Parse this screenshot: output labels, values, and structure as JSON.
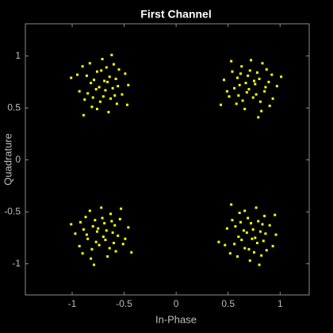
{
  "chart_data": {
    "type": "scatter",
    "title": "First Channel",
    "x_label": "In-Phase",
    "y_label": "Quadrature",
    "color": "#ffff00",
    "background": "#000000",
    "xlim": [
      -1.45,
      1.28
    ],
    "ylim": [
      -1.3,
      1.31
    ],
    "xticks": [
      -1,
      -0.5,
      0,
      0.5,
      1
    ],
    "yticks": [
      -1,
      -0.5,
      0,
      0.5,
      1
    ],
    "x": [
      0.76,
      0.59,
      0.81,
      0.68,
      0.89,
      0.51,
      0.78,
      0.63,
      0.85,
      0.56,
      0.72,
      0.93,
      0.66,
      0.8,
      0.61,
      0.74,
      0.46,
      0.87,
      0.69,
      0.82,
      0.54,
      0.97,
      0.64,
      0.75,
      0.58,
      0.9,
      0.7,
      0.83,
      0.49,
      0.77,
      0.62,
      1.01,
      0.43,
      0.71,
      0.86,
      0.67,
      0.79,
      0.53,
      0.92,
      0.6,
      -0.69,
      -0.63,
      -0.86,
      -0.77,
      -0.67,
      -0.81,
      -0.58,
      -0.52,
      -0.76,
      -0.73,
      -0.46,
      -0.83,
      -0.93,
      -0.64,
      -0.7,
      -0.82,
      -0.65,
      -0.55,
      -0.61,
      -0.95,
      -0.57,
      -0.71,
      -0.85,
      -0.66,
      -0.88,
      -0.9,
      -0.74,
      -0.49,
      -0.76,
      -0.79,
      -0.59,
      -0.62,
      -0.89,
      -0.56,
      -0.72,
      -0.68,
      -1.01,
      -0.47,
      -0.6,
      -0.8,
      -0.76,
      -0.59,
      -0.81,
      -0.68,
      -0.89,
      -0.51,
      -0.78,
      -0.63,
      -0.85,
      -0.56,
      -0.72,
      -0.93,
      -0.66,
      -0.8,
      -0.61,
      -0.74,
      -0.46,
      -0.87,
      -0.69,
      -0.82,
      -0.54,
      -0.97,
      -0.64,
      -0.75,
      -0.58,
      -0.9,
      -0.7,
      -0.83,
      -0.49,
      -0.77,
      -0.62,
      -1.01,
      -0.43,
      -0.71,
      -0.86,
      -0.67,
      -0.79,
      -0.53,
      -0.92,
      -0.6,
      0.73,
      0.79,
      0.56,
      0.65,
      0.75,
      0.61,
      0.84,
      0.9,
      0.66,
      0.69,
      0.96,
      0.59,
      0.49,
      0.78,
      0.72,
      0.6,
      0.77,
      0.87,
      0.81,
      0.47,
      0.85,
      0.71,
      0.57,
      0.76,
      0.54,
      0.52,
      0.68,
      0.93,
      0.66,
      0.63,
      0.83,
      0.8,
      0.53,
      0.86,
      0.7,
      0.74,
      0.41,
      0.95,
      0.82,
      0.62
    ],
    "values": [
      0.73,
      0.79,
      0.56,
      0.65,
      0.75,
      0.61,
      0.84,
      0.9,
      0.66,
      0.69,
      0.96,
      0.59,
      0.49,
      0.78,
      0.72,
      0.6,
      0.77,
      0.87,
      0.81,
      0.47,
      0.85,
      0.71,
      0.57,
      0.76,
      0.54,
      0.52,
      0.68,
      0.93,
      0.66,
      0.63,
      0.83,
      0.8,
      0.53,
      0.86,
      0.7,
      0.74,
      0.41,
      0.95,
      0.82,
      0.62,
      0.76,
      0.59,
      0.81,
      0.68,
      0.89,
      0.51,
      0.78,
      0.63,
      0.85,
      0.56,
      0.72,
      0.93,
      0.66,
      0.8,
      0.61,
      0.74,
      0.46,
      0.87,
      0.69,
      0.82,
      0.54,
      0.97,
      0.64,
      0.75,
      0.58,
      0.9,
      0.7,
      0.83,
      0.49,
      0.77,
      0.62,
      1.01,
      0.43,
      0.71,
      0.86,
      0.67,
      0.79,
      0.53,
      0.92,
      0.6,
      -0.69,
      -0.63,
      -0.86,
      -0.77,
      -0.67,
      -0.81,
      -0.58,
      -0.52,
      -0.76,
      -0.73,
      -0.46,
      -0.83,
      -0.93,
      -0.64,
      -0.7,
      -0.82,
      -0.65,
      -0.55,
      -0.61,
      -0.95,
      -0.57,
      -0.71,
      -0.85,
      -0.66,
      -0.88,
      -0.9,
      -0.74,
      -0.49,
      -0.76,
      -0.79,
      -0.59,
      -0.62,
      -0.89,
      -0.56,
      -0.72,
      -0.68,
      -1.01,
      -0.47,
      -0.6,
      -0.8,
      -0.76,
      -0.59,
      -0.81,
      -0.68,
      -0.89,
      -0.51,
      -0.78,
      -0.63,
      -0.85,
      -0.56,
      -0.72,
      -0.93,
      -0.66,
      -0.8,
      -0.61,
      -0.74,
      -0.46,
      -0.87,
      -0.69,
      -0.82,
      -0.54,
      -0.97,
      -0.64,
      -0.75,
      -0.58,
      -0.9,
      -0.7,
      -0.83,
      -0.49,
      -0.77,
      -0.62,
      -1.01,
      -0.43,
      -0.71,
      -0.86,
      -0.67,
      -0.79,
      -0.53,
      -0.92,
      -0.6
    ]
  }
}
